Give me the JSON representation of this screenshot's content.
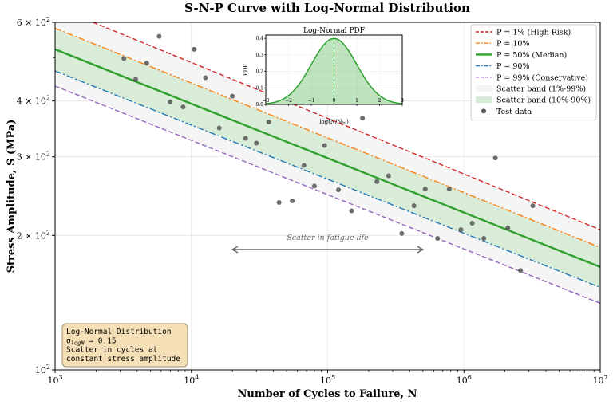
{
  "chart_data": {
    "type": "line",
    "title": "S-N-P Curve with Log-Normal Distribution",
    "xlabel": "Number of Cycles to Failure, N",
    "ylabel": "Stress Amplitude, S (MPa)",
    "xscale": "log",
    "yscale": "log",
    "xlim": [
      1000,
      10000000
    ],
    "ylim": [
      100,
      600
    ],
    "xticks": [
      {
        "value": 1000,
        "base": "10",
        "exp": "3"
      },
      {
        "value": 10000,
        "base": "10",
        "exp": "4"
      },
      {
        "value": 100000,
        "base": "10",
        "exp": "5"
      },
      {
        "value": 1000000,
        "base": "10",
        "exp": "6"
      },
      {
        "value": 10000000,
        "base": "10",
        "exp": "7"
      }
    ],
    "yticks": [
      {
        "value": 100,
        "base": "10",
        "exp": "2",
        "mant": ""
      },
      {
        "value": 200,
        "base": "10",
        "exp": "2",
        "mant": "2 × "
      },
      {
        "value": 300,
        "base": "10",
        "exp": "2",
        "mant": "3 × "
      },
      {
        "value": 400,
        "base": "10",
        "exp": "2",
        "mant": "4 × "
      },
      {
        "value": 600,
        "base": "10",
        "exp": "2",
        "mant": "6 × "
      }
    ],
    "grid": true,
    "legend_position": "top-right",
    "series": [
      {
        "name": "P = 1% (High Risk)",
        "color": "#d62728",
        "dash": "dashed",
        "width": 1.4,
        "points": [
          [
            1000,
            650
          ],
          [
            10000000,
            206
          ]
        ]
      },
      {
        "name": "P = 10%",
        "color": "#ff7f0e",
        "dash": "dashdot",
        "width": 1.4,
        "points": [
          [
            1000,
            582
          ],
          [
            10000000,
            188
          ]
        ]
      },
      {
        "name": "P = 50% (Median)",
        "color": "#2ca02c",
        "dash": "solid",
        "width": 2.4,
        "points": [
          [
            1000,
            522
          ],
          [
            10000000,
            170
          ]
        ]
      },
      {
        "name": "P = 90%",
        "color": "#1f77b4",
        "dash": "dashdot",
        "width": 1.4,
        "points": [
          [
            1000,
            467
          ],
          [
            10000000,
            153
          ]
        ]
      },
      {
        "name": "P = 99% (Conservative)",
        "color": "#9467bd",
        "dash": "dashed",
        "width": 1.4,
        "points": [
          [
            1000,
            432
          ],
          [
            10000000,
            141
          ]
        ]
      }
    ],
    "bands": [
      {
        "name": "Scatter band (1%-99%)",
        "color": "#f4f4f4",
        "from": 0,
        "to": 4
      },
      {
        "name": "Scatter band (10%-90%)",
        "color": "#d5ebd5",
        "from": 1,
        "to": 3
      }
    ],
    "test_data": {
      "name": "Test data",
      "color": "#555555",
      "points": [
        [
          3200,
          498
        ],
        [
          3900,
          447
        ],
        [
          4700,
          486
        ],
        [
          5800,
          558
        ],
        [
          7000,
          398
        ],
        [
          8700,
          388
        ],
        [
          10500,
          522
        ],
        [
          12700,
          451
        ],
        [
          16000,
          348
        ],
        [
          20000,
          410
        ],
        [
          25000,
          330
        ],
        [
          30000,
          322
        ],
        [
          37000,
          359
        ],
        [
          44000,
          237
        ],
        [
          55000,
          239
        ],
        [
          67000,
          287
        ],
        [
          80000,
          258
        ],
        [
          95000,
          318
        ],
        [
          120000,
          253
        ],
        [
          150000,
          227
        ],
        [
          180000,
          366
        ],
        [
          230000,
          264
        ],
        [
          280000,
          272
        ],
        [
          350000,
          202
        ],
        [
          430000,
          233
        ],
        [
          520000,
          254
        ],
        [
          640000,
          197
        ],
        [
          780000,
          254
        ],
        [
          950000,
          206
        ],
        [
          1150000,
          213
        ],
        [
          1400000,
          197
        ],
        [
          1700000,
          298
        ],
        [
          2100000,
          208
        ],
        [
          2600000,
          167
        ],
        [
          3200000,
          233
        ]
      ]
    },
    "annotation": {
      "text": "Scatter in fatigue life",
      "from": [
        20000,
        186
      ],
      "to": [
        500000,
        186
      ]
    },
    "infobox": {
      "line1": "Log-Normal Distribution",
      "line2_prefix": "σ",
      "line2_sub": "logN",
      "line2_suffix": " ≈ 0.15",
      "line3": "Scatter in cycles at",
      "line4": "constant stress amplitude"
    },
    "inset": {
      "title": "Log-Normal PDF",
      "xlabel": "log(N/N₅₀)",
      "ylabel": "PDF",
      "xlim": [
        -3,
        3
      ],
      "ylim": [
        0,
        0.42
      ],
      "xticks": [
        "−3",
        "−2",
        "−1",
        "0",
        "1",
        "2",
        "3"
      ],
      "yticks": [
        "0.0",
        "0.1",
        "0.2",
        "0.3",
        "0.4"
      ],
      "color": "#2ca02c"
    }
  }
}
